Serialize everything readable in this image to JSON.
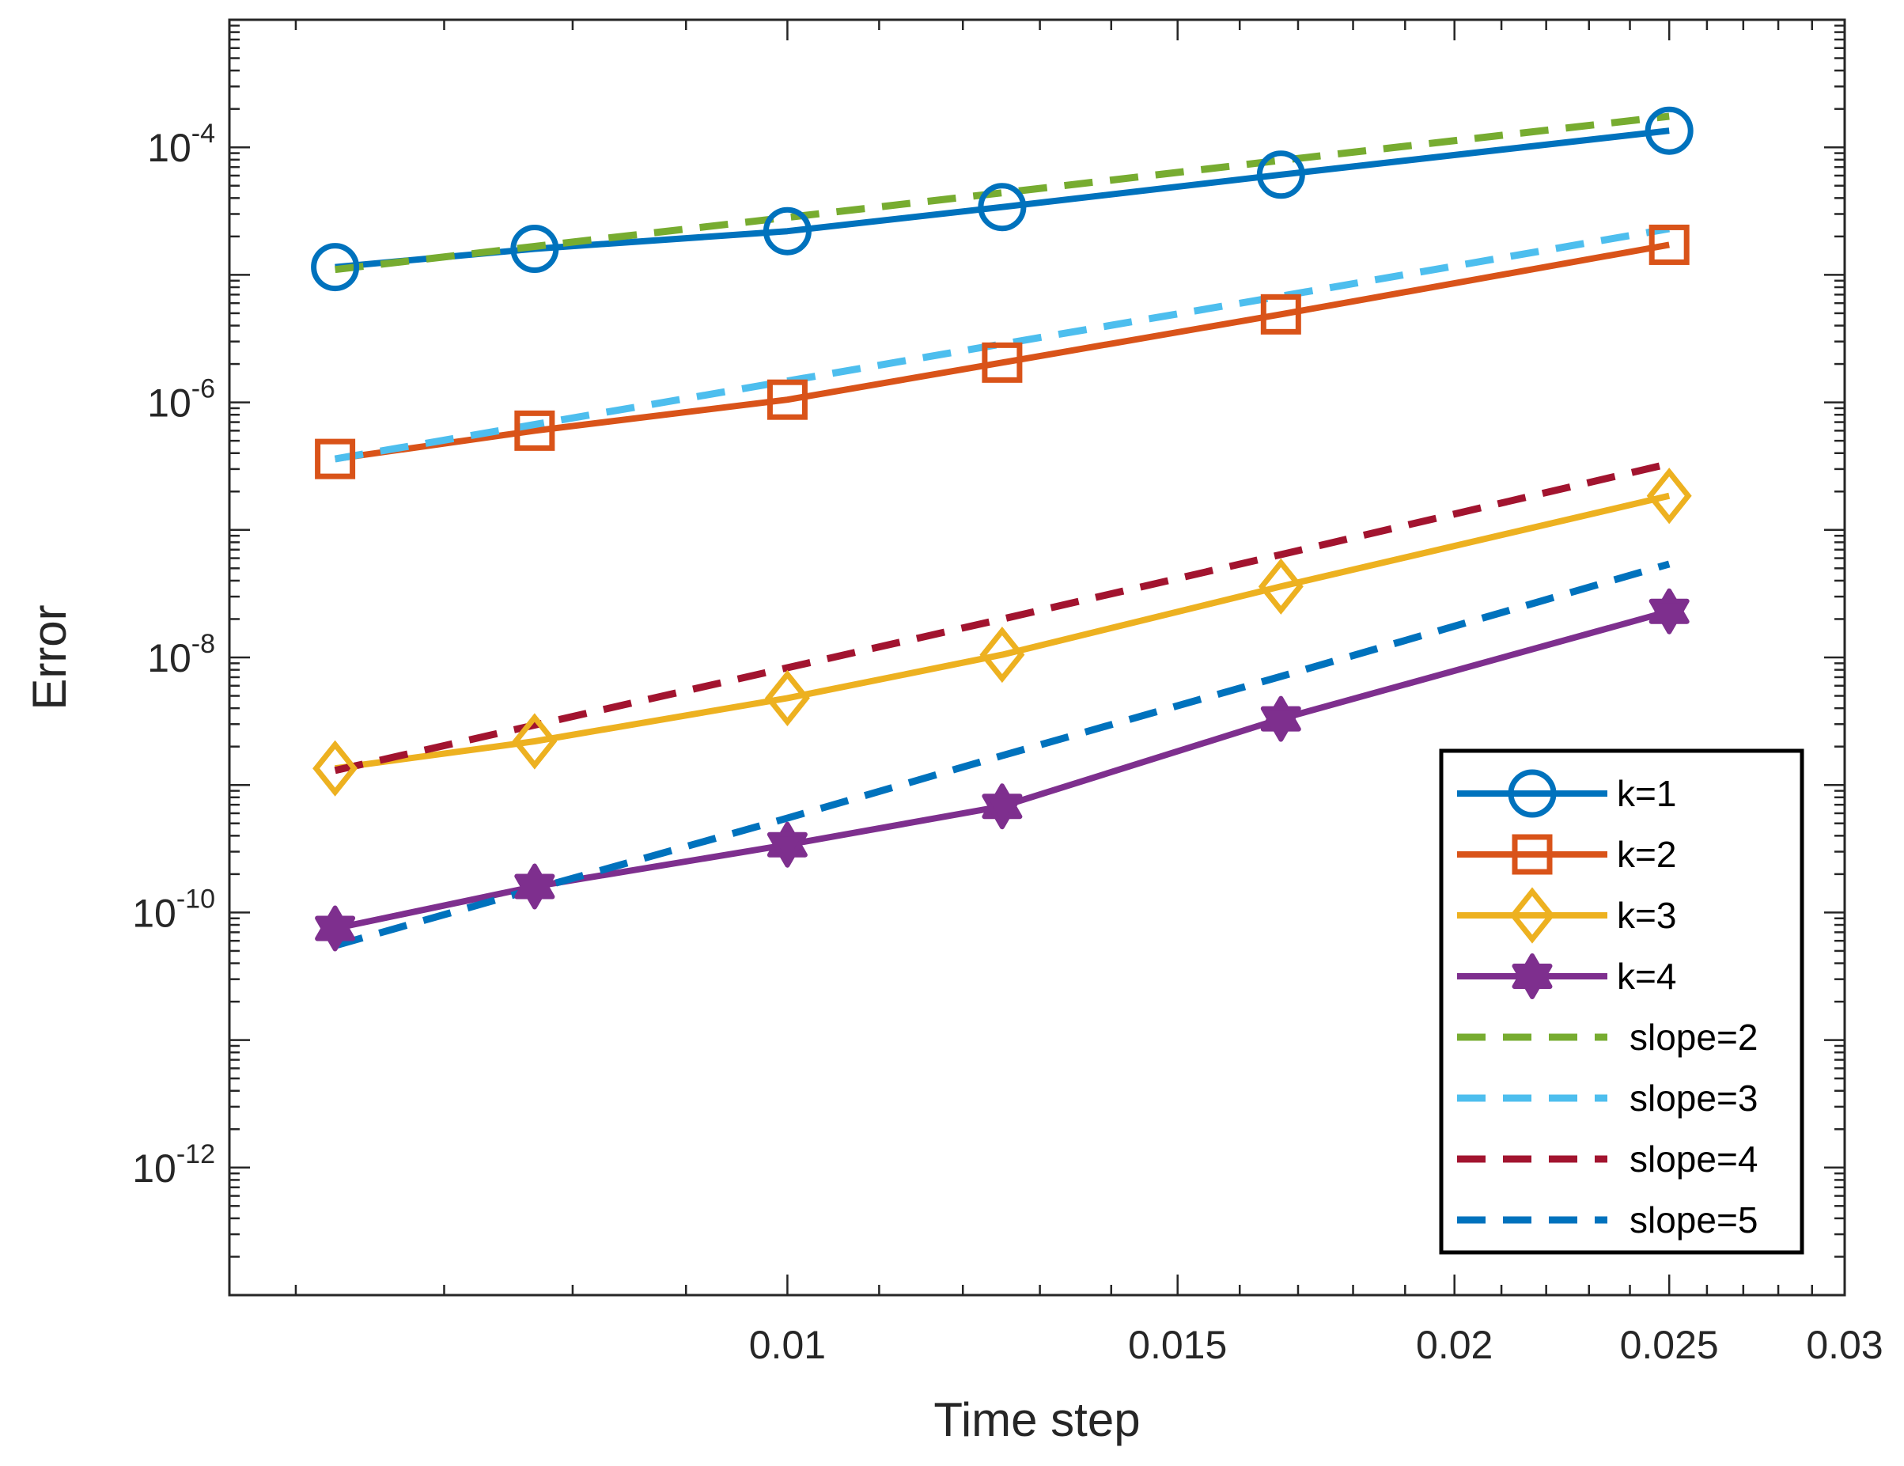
{
  "chart_data": {
    "type": "line",
    "xscale": "log",
    "yscale": "log",
    "xlabel": "Time step",
    "ylabel": "Error",
    "xlim": [
      0.0056,
      0.03
    ],
    "ylim": [
      1e-13,
      0.001
    ],
    "xticks": [
      0.01,
      0.015,
      0.02,
      0.025,
      0.03
    ],
    "xtick_labels": [
      "0.01",
      "0.015",
      "0.02",
      "0.025",
      "0.03"
    ],
    "yticks": [
      {
        "value": 0.0001,
        "base": "10",
        "exp": "-4"
      },
      {
        "value": 1e-06,
        "base": "10",
        "exp": "-6"
      },
      {
        "value": 1e-08,
        "base": "10",
        "exp": "-8"
      },
      {
        "value": 1e-10,
        "base": "10",
        "exp": "-10"
      },
      {
        "value": 1e-12,
        "base": "10",
        "exp": "-12"
      }
    ],
    "x": [
      0.00625,
      0.00769,
      0.01,
      0.0125,
      0.0167,
      0.025
    ],
    "series": [
      {
        "name": "k=1",
        "color": "#0072BD",
        "style": "solid",
        "marker": "circle",
        "values": [
          1.15e-05,
          1.6e-05,
          2.2e-05,
          3.4e-05,
          6.1e-05,
          0.000135
        ]
      },
      {
        "name": "k=2",
        "color": "#D95319",
        "style": "solid",
        "marker": "square",
        "values": [
          3.6e-07,
          6e-07,
          1.05e-06,
          2.05e-06,
          4.9e-06,
          1.72e-05
        ]
      },
      {
        "name": "k=3",
        "color": "#EDB120",
        "style": "solid",
        "marker": "diamond",
        "values": [
          1.35e-09,
          2.2e-09,
          4.8e-09,
          1.05e-08,
          3.6e-08,
          1.85e-07
        ]
      },
      {
        "name": "k=4",
        "color": "#7E2F8E",
        "style": "solid",
        "marker": "hexagram",
        "values": [
          7.5e-11,
          1.6e-10,
          3.4e-10,
          6.8e-10,
          3.3e-09,
          2.3e-08
        ]
      },
      {
        "name": "slope=2",
        "color": "#77AC30",
        "style": "dashed",
        "marker": "none",
        "values": [
          1.1e-05,
          1.67e-05,
          2.82e-05,
          4.4e-05,
          7.9e-05,
          0.000175
        ]
      },
      {
        "name": "slope=3",
        "color": "#4DBEEE",
        "style": "dashed",
        "marker": "none",
        "values": [
          3.6e-07,
          6.7e-07,
          1.47e-06,
          2.87e-06,
          6.8e-06,
          2.3e-05
        ]
      },
      {
        "name": "slope=4",
        "color": "#A2142F",
        "style": "dashed",
        "marker": "none",
        "values": [
          1.3e-09,
          2.95e-09,
          8.3e-09,
          2e-08,
          6.4e-08,
          3.3e-07
        ]
      },
      {
        "name": "slope=5",
        "color": "#0072BD",
        "style": "dashed",
        "marker": "none",
        "values": [
          5.5e-11,
          1.53e-10,
          5.5e-10,
          1.7e-09,
          7.1e-09,
          5.4e-08
        ]
      }
    ],
    "legend": {
      "placement": "bottom-right",
      "entries": [
        "k=1",
        "k=2",
        "k=3",
        "k=4",
        "slope=2",
        "slope=3",
        "slope=4",
        "slope=5"
      ]
    }
  }
}
